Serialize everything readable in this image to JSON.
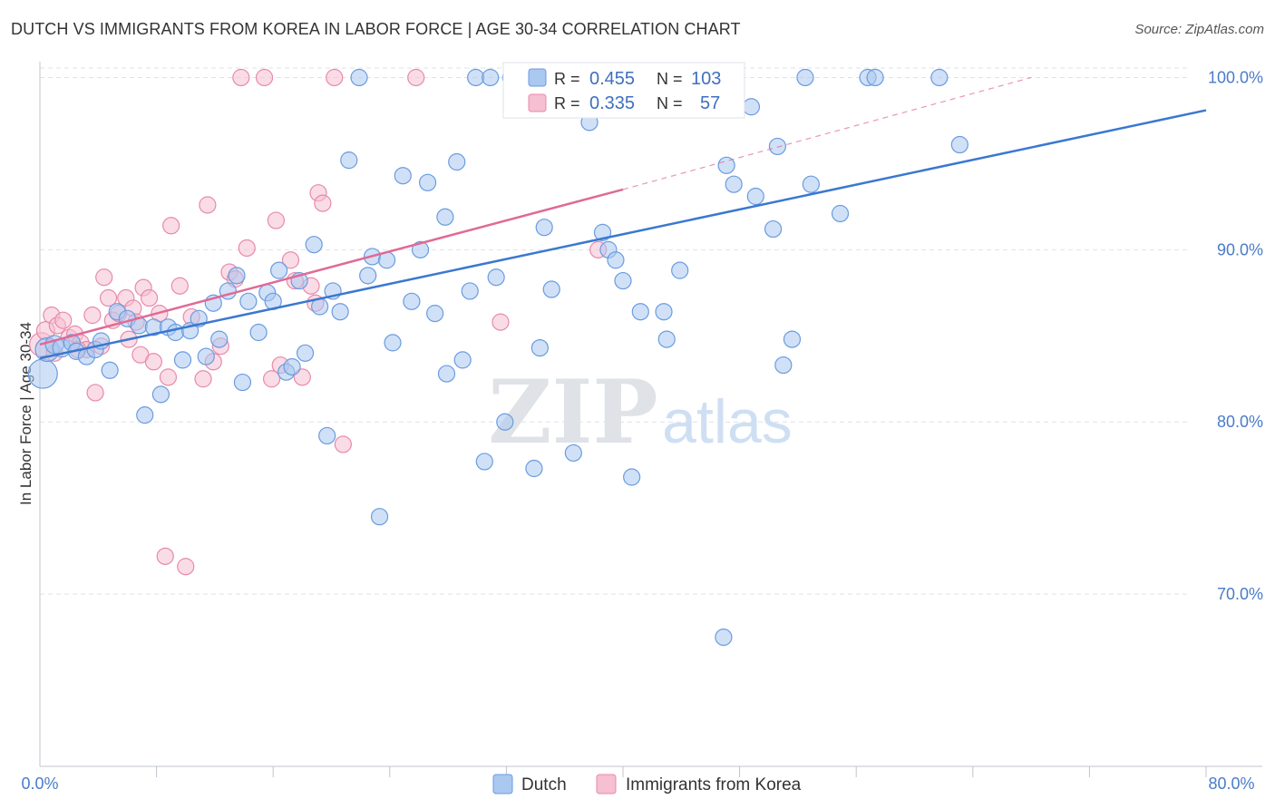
{
  "header": {
    "title": "DUTCH VS IMMIGRANTS FROM KOREA IN LABOR FORCE | AGE 30-34 CORRELATION CHART",
    "source": "Source: ZipAtlas.com"
  },
  "watermark": {
    "zip": "ZIP",
    "atlas": "atlas"
  },
  "colors": {
    "dutch_fill": "#aac8f0",
    "dutch_stroke": "#6a9be0",
    "korea_fill": "#f6bfd2",
    "korea_stroke": "#e88aaa",
    "dutch_line": "#3a78d0",
    "korea_line": "#e06a96",
    "grid": "#dde2ea"
  },
  "legend": {
    "r_label": "R =",
    "n_label": "N =",
    "rows": [
      {
        "series": "Dutch",
        "r": "0.455",
        "n": "103"
      },
      {
        "series": "Immigrants from Korea",
        "r": "0.335",
        "n": "57"
      }
    ]
  },
  "chart_data": {
    "type": "scatter",
    "title": "DUTCH VS IMMIGRANTS FROM KOREA IN LABOR FORCE | AGE 30-34 CORRELATION CHART",
    "xlabel": "",
    "ylabel": "In Labor Force | Age 30-34",
    "xlim": [
      0,
      80
    ],
    "ylim": [
      60,
      101.5
    ],
    "x_tick_labels": [
      "0.0%",
      "80.0%"
    ],
    "y_ticks": [
      70,
      80,
      90,
      100
    ],
    "y_tick_labels": [
      "70.0%",
      "80.0%",
      "90.0%",
      "100.0%"
    ],
    "grid": true,
    "legend_position": "top-center",
    "series": [
      {
        "name": "Dutch",
        "trend": {
          "x": [
            0,
            80
          ],
          "y": [
            83.7,
            98.1
          ],
          "style": "solid"
        },
        "points": [
          [
            0.2,
            82.8,
            16
          ],
          [
            0.5,
            84.2,
            13
          ],
          [
            1.0,
            84.5,
            10
          ],
          [
            1.5,
            84.3,
            10
          ],
          [
            2.2,
            84.6,
            9
          ],
          [
            2.5,
            84.1,
            9
          ],
          [
            3.2,
            83.8,
            9
          ],
          [
            3.8,
            84.2,
            9
          ],
          [
            4.2,
            84.7,
            9
          ],
          [
            4.8,
            83.0,
            9
          ],
          [
            5.3,
            86.4,
            9
          ],
          [
            6.0,
            86.0,
            9
          ],
          [
            6.8,
            85.6,
            9
          ],
          [
            7.2,
            80.4,
            9
          ],
          [
            7.8,
            85.5,
            9
          ],
          [
            8.3,
            81.6,
            9
          ],
          [
            8.8,
            85.5,
            9
          ],
          [
            9.3,
            85.2,
            9
          ],
          [
            9.8,
            83.6,
            9
          ],
          [
            10.3,
            85.3,
            9
          ],
          [
            10.9,
            86.0,
            9
          ],
          [
            11.4,
            83.8,
            9
          ],
          [
            11.9,
            86.9,
            9
          ],
          [
            12.3,
            84.8,
            9
          ],
          [
            12.9,
            87.6,
            9
          ],
          [
            13.5,
            88.5,
            9
          ],
          [
            13.9,
            82.3,
            9
          ],
          [
            14.3,
            87.0,
            9
          ],
          [
            15.0,
            85.2,
            9
          ],
          [
            15.6,
            87.5,
            9
          ],
          [
            16.0,
            87.0,
            9
          ],
          [
            16.4,
            88.8,
            9
          ],
          [
            16.9,
            82.9,
            9
          ],
          [
            17.3,
            83.2,
            9
          ],
          [
            17.8,
            88.2,
            9
          ],
          [
            18.2,
            84.0,
            9
          ],
          [
            18.8,
            90.3,
            9
          ],
          [
            19.2,
            86.7,
            9
          ],
          [
            19.7,
            79.2,
            9
          ],
          [
            20.1,
            87.6,
            9
          ],
          [
            20.6,
            86.4,
            9
          ],
          [
            21.2,
            95.2,
            9
          ],
          [
            21.9,
            100.0,
            9
          ],
          [
            22.5,
            88.5,
            9
          ],
          [
            22.8,
            89.6,
            9
          ],
          [
            23.3,
            74.5,
            9
          ],
          [
            23.8,
            89.4,
            9
          ],
          [
            24.2,
            84.6,
            9
          ],
          [
            24.9,
            94.3,
            9
          ],
          [
            25.5,
            87.0,
            9
          ],
          [
            26.1,
            90.0,
            9
          ],
          [
            26.6,
            93.9,
            9
          ],
          [
            27.1,
            86.3,
            9
          ],
          [
            27.8,
            91.9,
            9
          ],
          [
            27.9,
            82.8,
            9
          ],
          [
            28.6,
            95.1,
            9
          ],
          [
            29.0,
            83.6,
            9
          ],
          [
            29.5,
            87.6,
            9
          ],
          [
            29.9,
            100.0,
            9
          ],
          [
            30.5,
            77.7,
            9
          ],
          [
            30.9,
            100.0,
            9
          ],
          [
            31.3,
            88.4,
            9
          ],
          [
            31.9,
            80.0,
            9
          ],
          [
            32.3,
            100.0,
            9
          ],
          [
            33.9,
            77.3,
            9
          ],
          [
            34.3,
            84.3,
            9
          ],
          [
            34.6,
            91.3,
            9
          ],
          [
            35.1,
            87.7,
            9
          ],
          [
            36.2,
            100.0,
            9
          ],
          [
            36.6,
            78.2,
            9
          ],
          [
            37.7,
            97.4,
            9
          ],
          [
            38.3,
            100.0,
            9
          ],
          [
            38.6,
            91.0,
            9
          ],
          [
            39.0,
            90.0,
            9
          ],
          [
            39.5,
            89.4,
            9
          ],
          [
            40.0,
            88.2,
            9
          ],
          [
            40.3,
            100.0,
            9
          ],
          [
            40.6,
            76.8,
            9
          ],
          [
            41.2,
            86.4,
            9
          ],
          [
            42.1,
            100.0,
            9
          ],
          [
            42.8,
            86.4,
            9
          ],
          [
            43.0,
            84.8,
            9
          ],
          [
            43.9,
            88.8,
            9
          ],
          [
            46.6,
            100.0,
            9
          ],
          [
            47.1,
            94.9,
            9
          ],
          [
            47.6,
            93.8,
            9
          ],
          [
            48.8,
            98.3,
            9
          ],
          [
            49.1,
            93.1,
            9
          ],
          [
            50.3,
            91.2,
            9
          ],
          [
            50.6,
            96.0,
            9
          ],
          [
            51.0,
            83.3,
            9
          ],
          [
            51.6,
            84.8,
            9
          ],
          [
            52.5,
            100.0,
            9
          ],
          [
            52.9,
            93.8,
            9
          ],
          [
            54.9,
            92.1,
            9
          ],
          [
            56.8,
            100.0,
            9
          ],
          [
            57.3,
            100.0,
            9
          ],
          [
            61.7,
            100.0,
            9
          ],
          [
            63.1,
            96.1,
            9
          ],
          [
            46.9,
            67.5,
            9
          ]
        ]
      },
      {
        "name": "Immigrants from Korea",
        "trend": {
          "x": [
            0,
            40
          ],
          "y": [
            84.5,
            93.5
          ],
          "style": "solid",
          "extended_to": [
            68,
            100
          ],
          "extended_style": "dashed"
        },
        "points": [
          [
            0.1,
            84.5,
            13
          ],
          [
            0.4,
            85.3,
            10
          ],
          [
            0.8,
            86.2,
            9
          ],
          [
            1.2,
            85.6,
            9
          ],
          [
            1.6,
            85.9,
            9
          ],
          [
            2.0,
            84.9,
            9
          ],
          [
            2.4,
            85.1,
            9
          ],
          [
            2.8,
            84.6,
            9
          ],
          [
            3.2,
            84.2,
            9
          ],
          [
            3.6,
            86.2,
            9
          ],
          [
            3.8,
            81.7,
            9
          ],
          [
            4.2,
            84.4,
            9
          ],
          [
            4.4,
            88.4,
            9
          ],
          [
            4.7,
            87.2,
            9
          ],
          [
            5.0,
            85.9,
            9
          ],
          [
            5.4,
            86.3,
            9
          ],
          [
            5.9,
            87.2,
            9
          ],
          [
            6.1,
            84.8,
            9
          ],
          [
            6.4,
            86.6,
            9
          ],
          [
            6.9,
            83.9,
            9
          ],
          [
            7.1,
            87.8,
            9
          ],
          [
            7.5,
            87.2,
            9
          ],
          [
            7.8,
            83.5,
            9
          ],
          [
            8.2,
            86.3,
            9
          ],
          [
            8.6,
            72.2,
            9
          ],
          [
            8.8,
            82.6,
            9
          ],
          [
            9.0,
            91.4,
            9
          ],
          [
            9.6,
            87.9,
            9
          ],
          [
            10.0,
            71.6,
            9
          ],
          [
            10.4,
            86.1,
            9
          ],
          [
            11.2,
            82.5,
            9
          ],
          [
            11.5,
            92.6,
            9
          ],
          [
            11.9,
            83.5,
            9
          ],
          [
            12.4,
            84.4,
            9
          ],
          [
            13.0,
            88.7,
            9
          ],
          [
            13.4,
            88.3,
            9
          ],
          [
            13.8,
            100.0,
            9
          ],
          [
            14.2,
            90.1,
            9
          ],
          [
            15.4,
            100.0,
            9
          ],
          [
            15.9,
            82.5,
            9
          ],
          [
            16.2,
            91.7,
            9
          ],
          [
            16.5,
            83.3,
            9
          ],
          [
            17.2,
            89.4,
            9
          ],
          [
            17.5,
            88.2,
            9
          ],
          [
            18.0,
            82.6,
            9
          ],
          [
            18.6,
            87.9,
            9
          ],
          [
            18.9,
            86.9,
            9
          ],
          [
            19.1,
            93.3,
            9
          ],
          [
            19.4,
            92.7,
            9
          ],
          [
            20.2,
            100.0,
            9
          ],
          [
            20.8,
            78.7,
            9
          ],
          [
            25.8,
            100.0,
            9
          ],
          [
            31.6,
            85.8,
            9
          ],
          [
            38.3,
            90.0,
            9
          ],
          [
            2.6,
            84.2,
            9
          ],
          [
            1.0,
            84.0,
            9
          ],
          [
            6.6,
            85.8,
            9
          ]
        ]
      }
    ]
  },
  "bottom_legend": {
    "items": [
      "Dutch",
      "Immigrants from Korea"
    ]
  }
}
